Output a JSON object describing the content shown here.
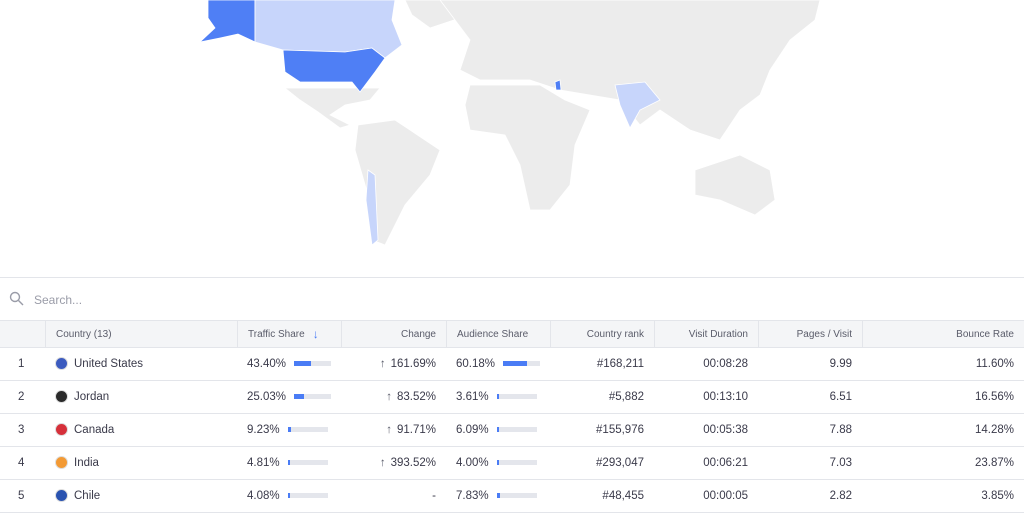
{
  "search": {
    "placeholder": "Search..."
  },
  "table": {
    "columns": [
      "Country (13)",
      "Traffic Share",
      "Change",
      "Audience Share",
      "Country rank",
      "Visit Duration",
      "Pages / Visit",
      "Bounce Rate"
    ],
    "rows": [
      {
        "index": "1",
        "country": "United States",
        "traffic_share": {
          "value": 43.4,
          "label": "43.40%"
        },
        "change": "161.69%",
        "audience_share": {
          "value": 60.18,
          "label": "60.18%"
        },
        "country_rank": "#168,211",
        "visit_duration": "00:08:28",
        "pages_visit": "9.99",
        "bounce_rate": "11.60%"
      },
      {
        "index": "2",
        "country": "Jordan",
        "traffic_share": {
          "value": 25.03,
          "label": "25.03%"
        },
        "change": "83.52%",
        "audience_share": {
          "value": 3.61,
          "label": "3.61%"
        },
        "country_rank": "#5,882",
        "visit_duration": "00:13:10",
        "pages_visit": "6.51",
        "bounce_rate": "16.56%"
      },
      {
        "index": "3",
        "country": "Canada",
        "traffic_share": {
          "value": 9.23,
          "label": "9.23%"
        },
        "change": "91.71%",
        "audience_share": {
          "value": 6.09,
          "label": "6.09%"
        },
        "country_rank": "#155,976",
        "visit_duration": "00:05:38",
        "pages_visit": "7.88",
        "bounce_rate": "14.28%"
      },
      {
        "index": "4",
        "country": "India",
        "traffic_share": {
          "value": 4.81,
          "label": "4.81%"
        },
        "change": "393.52%",
        "audience_share": {
          "value": 4.0,
          "label": "4.00%"
        },
        "country_rank": "#293,047",
        "visit_duration": "00:06:21",
        "pages_visit": "7.03",
        "bounce_rate": "23.87%"
      },
      {
        "index": "5",
        "country": "Chile",
        "traffic_share": {
          "value": 4.08,
          "label": "4.08%"
        },
        "change": "-",
        "audience_share": {
          "value": 7.83,
          "label": "7.83%"
        },
        "country_rank": "#48,455",
        "visit_duration": "00:00:05",
        "pages_visit": "2.82",
        "bounce_rate": "3.85%"
      }
    ]
  }
}
